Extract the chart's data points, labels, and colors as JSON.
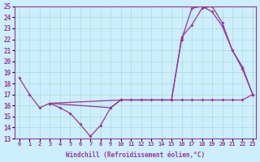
{
  "xlabel": "Windchill (Refroidissement éolien,°C)",
  "ylabel": "",
  "bg_color": "#cceeff",
  "line_color": "#993399",
  "grid_color": "#aaddcc",
  "xlim": [
    -0.5,
    23.3
  ],
  "ylim": [
    13,
    25
  ],
  "xticks": [
    0,
    1,
    2,
    3,
    4,
    5,
    6,
    7,
    8,
    9,
    10,
    11,
    12,
    13,
    14,
    15,
    16,
    17,
    18,
    19,
    20,
    21,
    22,
    23
  ],
  "yticks": [
    13,
    14,
    15,
    16,
    17,
    18,
    19,
    20,
    21,
    22,
    23,
    24,
    25
  ],
  "line1": {
    "x": [
      0,
      1,
      2,
      3,
      4,
      5,
      6,
      7,
      8,
      9,
      10,
      11,
      12,
      13,
      14,
      15,
      16,
      17,
      18,
      19,
      20,
      21,
      22,
      23
    ],
    "y": [
      18.5,
      17.0,
      15.8,
      16.2,
      15.8,
      15.3,
      14.3,
      13.2,
      14.2,
      15.8,
      16.5,
      16.5,
      16.5,
      16.5,
      16.5,
      16.5,
      16.5,
      16.5,
      16.5,
      16.5,
      16.5,
      16.5,
      16.5,
      17.0
    ]
  },
  "line2": {
    "x": [
      3,
      9,
      10,
      15,
      16,
      17,
      18,
      19,
      20,
      21,
      22,
      23
    ],
    "y": [
      16.2,
      15.8,
      16.5,
      16.5,
      22.2,
      23.3,
      24.8,
      25.0,
      23.5,
      21.0,
      19.3,
      17.0
    ]
  },
  "line3": {
    "x": [
      3,
      10,
      15,
      16,
      17,
      18,
      19,
      20,
      21,
      22,
      23
    ],
    "y": [
      16.2,
      16.5,
      16.5,
      22.0,
      24.8,
      25.0,
      24.5,
      23.2,
      21.0,
      19.5,
      17.0
    ]
  }
}
